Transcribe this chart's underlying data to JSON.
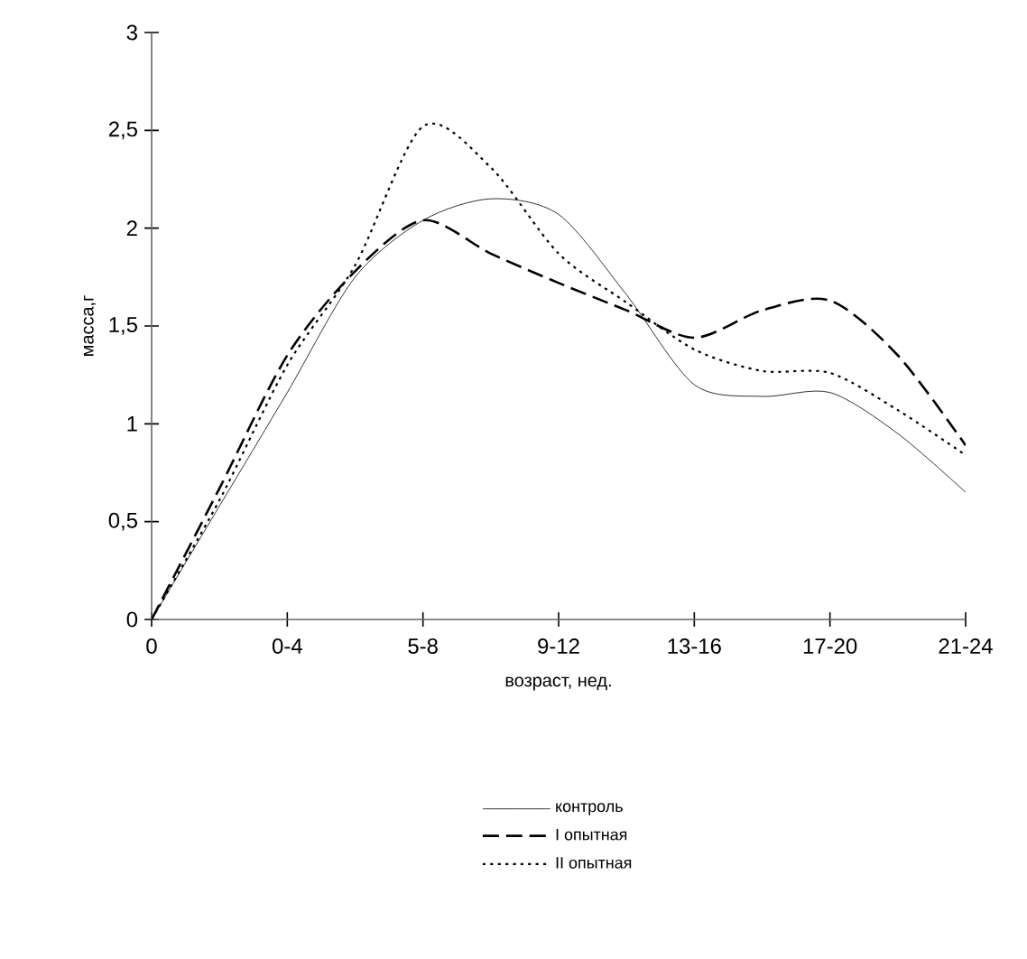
{
  "chart_data": {
    "type": "line",
    "xlabel": "возраст, нед.",
    "ylabel": "масса,г",
    "categories": [
      "0",
      null,
      "0-4",
      null,
      "5-8",
      null,
      "9-12",
      null,
      "13-16",
      null,
      "17-20",
      null,
      "21-24"
    ],
    "ylim": [
      0,
      3
    ],
    "yticks": [
      0,
      {
        "value": 0.5,
        "label": "0,5"
      },
      1,
      {
        "value": 1.5,
        "label": "1,5"
      },
      2,
      {
        "value": 2.5,
        "label": "2,5"
      },
      3
    ],
    "grid": false,
    "legend": "bottom",
    "marker": "none",
    "series": [
      {
        "name": "контроль",
        "color": "#000000",
        "line_style": "solid",
        "values": [
          0,
          0.58,
          1.16,
          1.75,
          2.04,
          2.15,
          2.07,
          1.66,
          1.2,
          1.14,
          1.16,
          0.95,
          0.65
        ]
      },
      {
        "name": "I опытная",
        "color": "#000000",
        "line_style": "dashed",
        "values": [
          0,
          0.67,
          1.35,
          1.78,
          2.04,
          1.87,
          1.72,
          1.58,
          1.44,
          1.58,
          1.63,
          1.35,
          0.89
        ]
      },
      {
        "name": "II опытная",
        "color": "#000000",
        "line_style": "dotted",
        "values": [
          0,
          0.61,
          1.3,
          1.81,
          2.52,
          2.31,
          1.87,
          1.62,
          1.38,
          1.27,
          1.26,
          1.07,
          0.84
        ]
      }
    ]
  }
}
